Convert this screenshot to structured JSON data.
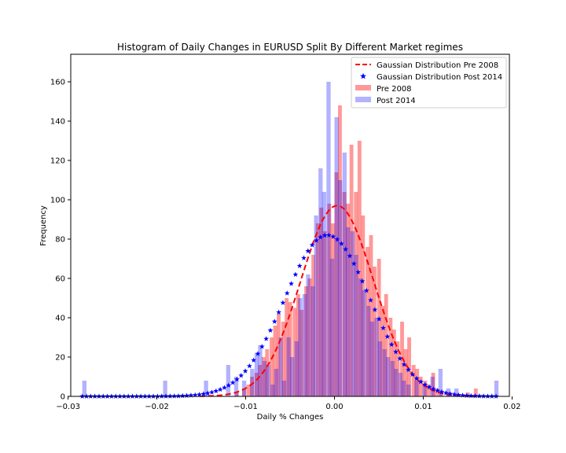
{
  "chart_data": {
    "type": "bar",
    "title": "Histogram of Daily Changes in EURUSD Split By Different Market regimes",
    "xlabel": "Daily % Changes",
    "ylabel": "Frequency",
    "xlim": [
      -0.0297,
      0.0197
    ],
    "ylim": [
      0,
      174
    ],
    "xticks": [
      -0.03,
      -0.02,
      -0.01,
      0.0,
      0.01,
      0.02
    ],
    "xtick_labels": [
      "−0.03",
      "−0.02",
      "−0.01",
      "0.00",
      "0.01",
      "0.02"
    ],
    "yticks": [
      0,
      20,
      40,
      60,
      80,
      100,
      120,
      140,
      160
    ],
    "grid": false,
    "legend_position": "top-right",
    "series": [
      {
        "name": "Pre 2008",
        "kind": "histogram",
        "color": "#ff0000",
        "opacity": 0.4,
        "bin_width": 0.00043,
        "bins": [
          [
            -0.0112,
            2
          ],
          [
            -0.0104,
            4
          ],
          [
            -0.0099,
            6
          ],
          [
            -0.0095,
            10
          ],
          [
            -0.009,
            12
          ],
          [
            -0.0086,
            16
          ],
          [
            -0.0082,
            20
          ],
          [
            -0.0078,
            24
          ],
          [
            -0.0073,
            30
          ],
          [
            -0.0069,
            36
          ],
          [
            -0.0065,
            42
          ],
          [
            -0.006,
            38
          ],
          [
            -0.0056,
            50
          ],
          [
            -0.0052,
            48
          ],
          [
            -0.0047,
            45
          ],
          [
            -0.0043,
            52
          ],
          [
            -0.0039,
            44
          ],
          [
            -0.0034,
            56
          ],
          [
            -0.003,
            60
          ],
          [
            -0.0026,
            72
          ],
          [
            -0.0021,
            88
          ],
          [
            -0.0017,
            96
          ],
          [
            -0.0013,
            84
          ],
          [
            -0.0008,
            98
          ],
          [
            -0.0004,
            88
          ],
          [
            0.0,
            114
          ],
          [
            0.0004,
            148
          ],
          [
            0.0009,
            104
          ],
          [
            0.0013,
            98
          ],
          [
            0.0017,
            128
          ],
          [
            0.0022,
            104
          ],
          [
            0.0026,
            130
          ],
          [
            0.003,
            92
          ],
          [
            0.0035,
            76
          ],
          [
            0.0039,
            82
          ],
          [
            0.0043,
            66
          ],
          [
            0.0048,
            70
          ],
          [
            0.0052,
            46
          ],
          [
            0.0056,
            52
          ],
          [
            0.0061,
            40
          ],
          [
            0.0065,
            34
          ],
          [
            0.0069,
            28
          ],
          [
            0.0074,
            38
          ],
          [
            0.0078,
            24
          ],
          [
            0.0082,
            30
          ],
          [
            0.0087,
            16
          ],
          [
            0.0091,
            14
          ],
          [
            0.0095,
            10
          ],
          [
            0.01,
            8
          ],
          [
            0.0104,
            6
          ],
          [
            0.0109,
            12
          ],
          [
            0.0113,
            4
          ],
          [
            0.0118,
            3
          ],
          [
            0.0126,
            2
          ],
          [
            0.0148,
            2
          ],
          [
            0.0157,
            4
          ]
        ]
      },
      {
        "name": "Post 2014",
        "kind": "histogram",
        "color": "#0000ff",
        "opacity": 0.3,
        "bin_width": 0.00047,
        "bins": [
          [
            -0.0284,
            8
          ],
          [
            -0.0193,
            8
          ],
          [
            -0.0147,
            8
          ],
          [
            -0.0122,
            16
          ],
          [
            -0.0113,
            10
          ],
          [
            -0.0104,
            8
          ],
          [
            -0.0095,
            14
          ],
          [
            -0.009,
            22
          ],
          [
            -0.0086,
            26
          ],
          [
            -0.0081,
            18
          ],
          [
            -0.0077,
            16
          ],
          [
            -0.0072,
            6
          ],
          [
            -0.0068,
            14
          ],
          [
            -0.0063,
            30
          ],
          [
            -0.0059,
            8
          ],
          [
            -0.0054,
            30
          ],
          [
            -0.005,
            20
          ],
          [
            -0.0045,
            28
          ],
          [
            -0.0041,
            50
          ],
          [
            -0.0036,
            52
          ],
          [
            -0.0032,
            62
          ],
          [
            -0.0027,
            56
          ],
          [
            -0.0023,
            92
          ],
          [
            -0.0018,
            116
          ],
          [
            -0.0014,
            104
          ],
          [
            -0.0009,
            160
          ],
          [
            -0.0005,
            70
          ],
          [
            0.0,
            142
          ],
          [
            0.0004,
            110
          ],
          [
            0.0009,
            124
          ],
          [
            0.0013,
            86
          ],
          [
            0.0018,
            84
          ],
          [
            0.0022,
            72
          ],
          [
            0.0027,
            60
          ],
          [
            0.0031,
            54
          ],
          [
            0.0036,
            46
          ],
          [
            0.004,
            38
          ],
          [
            0.0045,
            40
          ],
          [
            0.0049,
            28
          ],
          [
            0.0054,
            24
          ],
          [
            0.0058,
            20
          ],
          [
            0.0063,
            18
          ],
          [
            0.0067,
            14
          ],
          [
            0.0072,
            12
          ],
          [
            0.0076,
            8
          ],
          [
            0.0081,
            6
          ],
          [
            0.009,
            8
          ],
          [
            0.0099,
            6
          ],
          [
            0.0108,
            10
          ],
          [
            0.0117,
            14
          ],
          [
            0.0126,
            4
          ],
          [
            0.0135,
            4
          ],
          [
            0.018,
            8
          ]
        ]
      },
      {
        "name": "Gaussian Distribution Pre 2008",
        "kind": "curve",
        "style": "dashed-line",
        "color": "#ff0000",
        "mean": 0.0003,
        "std": 0.0041,
        "peak": 97
      },
      {
        "name": "Gaussian Distribution Post 2014",
        "kind": "curve",
        "style": "star-markers",
        "color": "#0000ff",
        "mean": -0.0008,
        "std": 0.0048,
        "peak": 82,
        "x_start": -0.0284,
        "x_end": 0.0182,
        "n_points": 100
      }
    ],
    "legend": [
      {
        "label": "Gaussian Distribution Pre 2008",
        "symbol": "dashed-line",
        "color": "#ff0000"
      },
      {
        "label": "Gaussian Distribution Post 2014",
        "symbol": "star",
        "color": "#0000ff"
      },
      {
        "label": "Pre 2008",
        "symbol": "patch",
        "color": "#ff0000",
        "opacity": 0.4
      },
      {
        "label": "Post 2014",
        "symbol": "patch",
        "color": "#0000ff",
        "opacity": 0.3
      }
    ]
  }
}
